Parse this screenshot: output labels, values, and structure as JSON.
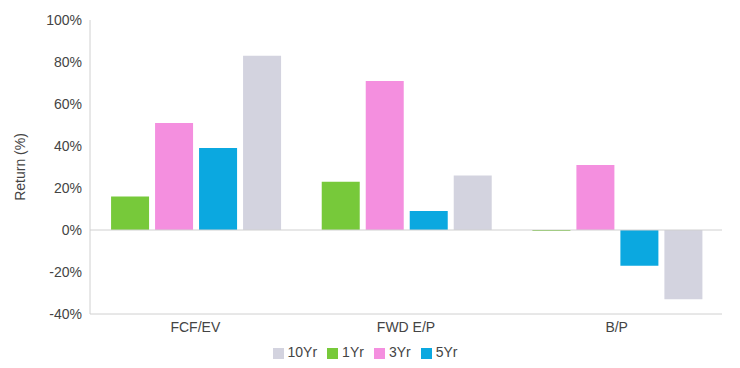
{
  "chart_data": {
    "type": "bar",
    "y_label": "Return (%)",
    "categories": [
      "FCF/EV",
      "FWD E/P",
      "B/P"
    ],
    "series": [
      {
        "name": "1Yr",
        "color": "#77c93a",
        "values": [
          16,
          23,
          -0.5
        ]
      },
      {
        "name": "3Yr",
        "color": "#f48fdf",
        "values": [
          51,
          71,
          31
        ]
      },
      {
        "name": "5Yr",
        "color": "#0ba8e0",
        "values": [
          39,
          9,
          -17
        ]
      },
      {
        "name": "10Yr",
        "color": "#d3d3df",
        "values": [
          83,
          26,
          -33
        ]
      }
    ],
    "ylim": [
      -40,
      100
    ],
    "yticks": [
      {
        "value": -40,
        "label": "-40%"
      },
      {
        "value": -20,
        "label": "-20%"
      },
      {
        "value": 0,
        "label": "0%"
      },
      {
        "value": 20,
        "label": "20%"
      },
      {
        "value": 40,
        "label": "40%"
      },
      {
        "value": 60,
        "label": "60%"
      },
      {
        "value": 80,
        "label": "80%"
      },
      {
        "value": 100,
        "label": "100%"
      }
    ],
    "grid": false,
    "legend": "bottom"
  }
}
